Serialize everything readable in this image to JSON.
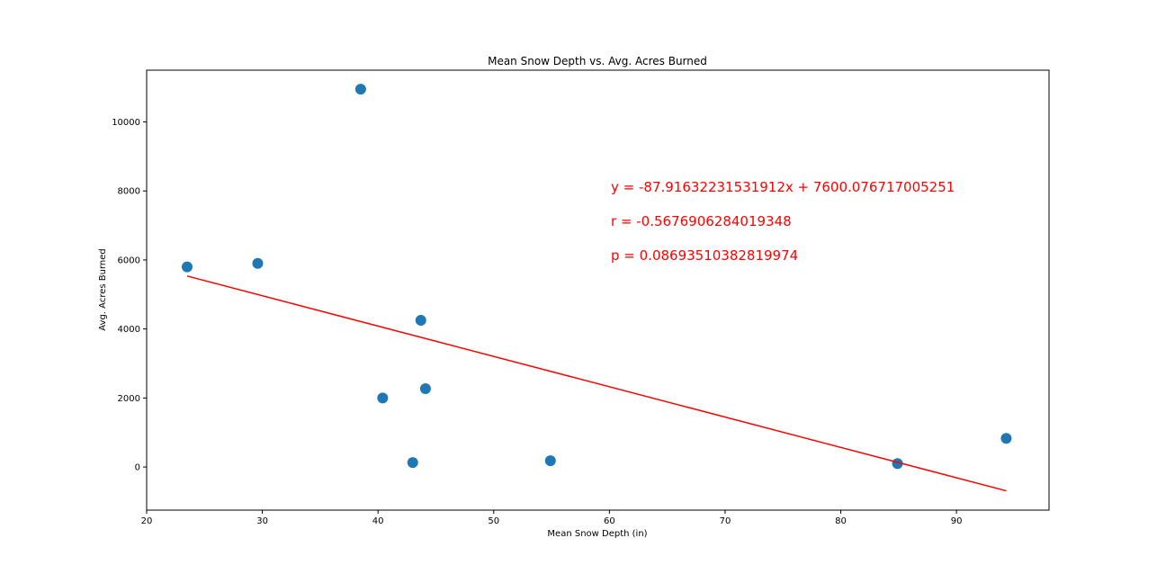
{
  "chart_data": {
    "type": "scatter",
    "title": "Mean Snow Depth vs. Avg. Acres Burned",
    "xlabel": "Mean Snow Depth (in)",
    "ylabel": "Avg. Acres Burned",
    "xlim": [
      20,
      98
    ],
    "ylim": [
      -1250,
      11500
    ],
    "xticks": [
      20,
      30,
      40,
      50,
      60,
      70,
      80,
      90
    ],
    "yticks": [
      0,
      2000,
      4000,
      6000,
      8000,
      10000
    ],
    "grid": false,
    "points": [
      {
        "x": 23.5,
        "y": 5800
      },
      {
        "x": 29.6,
        "y": 5900
      },
      {
        "x": 38.5,
        "y": 10950
      },
      {
        "x": 40.4,
        "y": 2000
      },
      {
        "x": 43.0,
        "y": 130
      },
      {
        "x": 43.7,
        "y": 4250
      },
      {
        "x": 44.1,
        "y": 2270
      },
      {
        "x": 54.9,
        "y": 180
      },
      {
        "x": 84.9,
        "y": 100
      },
      {
        "x": 94.3,
        "y": 830
      }
    ],
    "point_color": "#1f77b4",
    "regression": {
      "slope": -87.91632231531912,
      "intercept": 7600.076717005251,
      "x_range": [
        23.5,
        94.3
      ],
      "color": "#ff0000"
    },
    "annotations": [
      "y = -87.91632231531912x + 7600.076717005251",
      "r = -0.5676906284019348",
      "p = 0.08693510382819974"
    ],
    "annotation_color": "#ff0000"
  }
}
